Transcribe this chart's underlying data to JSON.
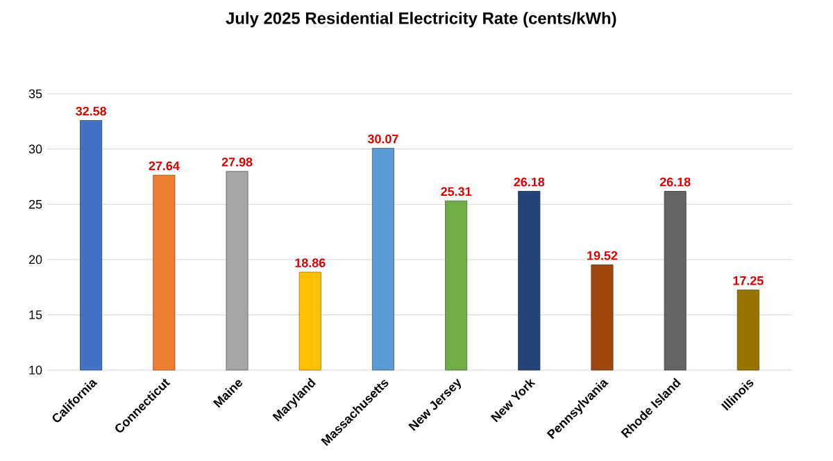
{
  "chart_data": {
    "type": "bar",
    "title": "July 2025 Residential Electricity Rate (cents/kWh)",
    "categories": [
      "California",
      "Connecticut",
      "Maine",
      "Maryland",
      "Massachusetts",
      "New Jersey",
      "New York",
      "Pennsylvania",
      "Rhode Island",
      "Illinois"
    ],
    "values": [
      32.58,
      27.64,
      27.98,
      18.86,
      30.07,
      25.31,
      26.18,
      19.52,
      26.18,
      17.25
    ],
    "colors": [
      "#4472c4",
      "#ed7d31",
      "#a5a5a5",
      "#ffc000",
      "#5b9bd5",
      "#70ad47",
      "#264478",
      "#9e480e",
      "#636363",
      "#997300"
    ],
    "ylim": [
      10,
      35
    ],
    "yticks": [
      10,
      15,
      20,
      25,
      30,
      35
    ],
    "grid": "y",
    "data_labels": true
  }
}
